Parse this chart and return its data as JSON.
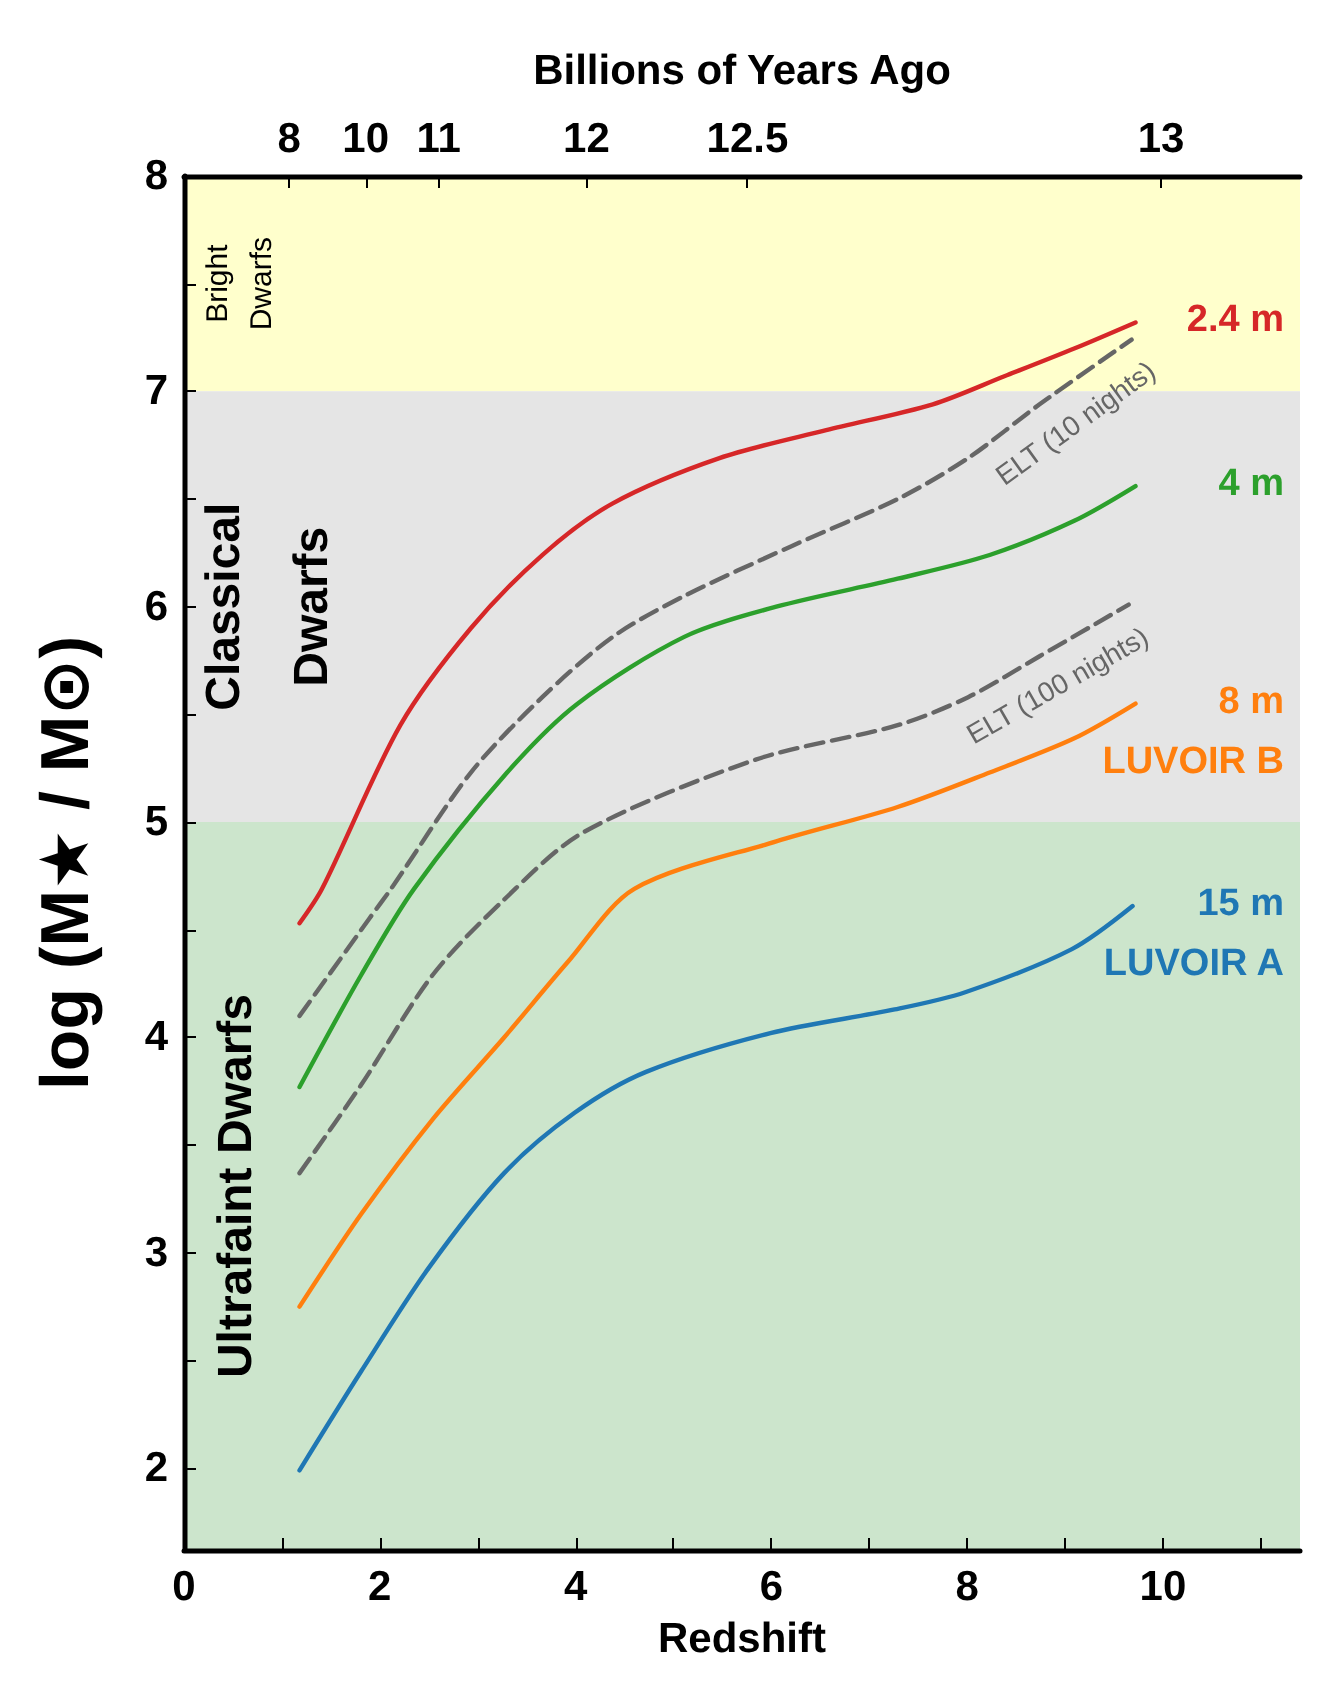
{
  "chart_data": {
    "type": "line",
    "xlabel": "Redshift",
    "ylabel": "log (M★ / M⊙)",
    "x2label": "Billions of Years Ago",
    "xlim": [
      0,
      11.4
    ],
    "ylim": [
      1.62,
      8
    ],
    "xticks": [
      0,
      {
        "value": 1,
        "label": null
      },
      2,
      {
        "value": 3,
        "label": null
      },
      4,
      {
        "value": 5,
        "label": null
      },
      6,
      {
        "value": 7,
        "label": null
      },
      8,
      {
        "value": 9,
        "label": null
      },
      10,
      {
        "value": 11,
        "label": null
      }
    ],
    "yticks": [
      2,
      {
        "value": 2.5,
        "label": null
      },
      3,
      {
        "value": 3.5,
        "label": null
      },
      4,
      {
        "value": 4.5,
        "label": null
      },
      5,
      {
        "value": 5.5,
        "label": null
      },
      6,
      {
        "value": 6.5,
        "label": null
      },
      7,
      {
        "value": 7.5,
        "label": null
      },
      8
    ],
    "annotations": [
      "8",
      "10",
      "11",
      "12",
      "12.5",
      "13"
    ],
    "grid": false,
    "legend": false,
    "marker": "none",
    "line_style": "solid",
    "bands": [
      {
        "axis": "y",
        "from": 7,
        "to": 8,
        "label": "Bright\nDwarfs",
        "color": "#ffffcc"
      },
      {
        "axis": "y",
        "from": 5,
        "to": 7,
        "label": "Classical\nDwarfs",
        "color": "#e5e5e5"
      },
      {
        "axis": "y",
        "from": 1.62,
        "to": 5,
        "label": "Ultrafaint Dwarfs",
        "color": "#cce5cc"
      }
    ],
    "series": [
      {
        "name": "2.4 m",
        "color": "#d62728",
        "x": [
          1.18,
          1.41,
          2.21,
          2.93,
          3.66,
          4.38,
          5.47,
          6.56,
          7.65,
          8.38,
          9.1,
          9.72
        ],
        "values": [
          4.53,
          4.69,
          5.45,
          5.9,
          6.24,
          6.48,
          6.69,
          6.82,
          6.94,
          7.07,
          7.2,
          7.32
        ]
      },
      {
        "name": "ELT (10 nights)",
        "color": "#666666",
        "line_style": "dashed",
        "x": [
          1.18,
          1.89,
          2.13,
          2.93,
          3.66,
          4.38,
          5.11,
          6.2,
          7.29,
          8.01,
          8.74,
          9.68
        ],
        "values": [
          4.1,
          4.55,
          4.7,
          5.23,
          5.58,
          5.86,
          6.05,
          6.28,
          6.5,
          6.69,
          6.94,
          7.24
        ]
      },
      {
        "name": "4 m",
        "color": "#2ca02c",
        "x": [
          1.18,
          1.81,
          2.35,
          3.3,
          4.02,
          5.11,
          6.05,
          7.29,
          8.23,
          9.1,
          9.72
        ],
        "values": [
          3.77,
          4.29,
          4.69,
          5.23,
          5.55,
          5.86,
          6.0,
          6.13,
          6.24,
          6.4,
          6.56
        ]
      },
      {
        "name": "ELT (100 nights)",
        "color": "#666666",
        "line_style": "dashed",
        "x": [
          1.18,
          1.81,
          2.54,
          3.27,
          4.07,
          5.84,
          7.29,
          8.01,
          8.74,
          9.65
        ],
        "values": [
          3.37,
          3.78,
          4.29,
          4.64,
          4.95,
          5.29,
          5.45,
          5.58,
          5.77,
          6.01
        ]
      },
      {
        "name": "8 m\nLUVOIR B",
        "color": "#ff7f0e",
        "x": [
          1.18,
          1.81,
          2.54,
          3.27,
          3.92,
          4.6,
          6.05,
          7.29,
          8.23,
          9.1,
          9.72
        ],
        "values": [
          2.75,
          3.18,
          3.62,
          4.0,
          4.35,
          4.69,
          4.91,
          5.07,
          5.23,
          5.39,
          5.55
        ]
      },
      {
        "name": "15 m\nLUVOIR A",
        "color": "#1f77b4",
        "x": [
          1.18,
          1.81,
          2.5,
          3.27,
          3.99,
          4.72,
          5.99,
          7.26,
          7.98,
          9.07,
          9.69
        ],
        "values": [
          1.99,
          2.45,
          2.93,
          3.37,
          3.65,
          3.84,
          4.02,
          4.13,
          4.21,
          4.41,
          4.61
        ]
      }
    ]
  }
}
